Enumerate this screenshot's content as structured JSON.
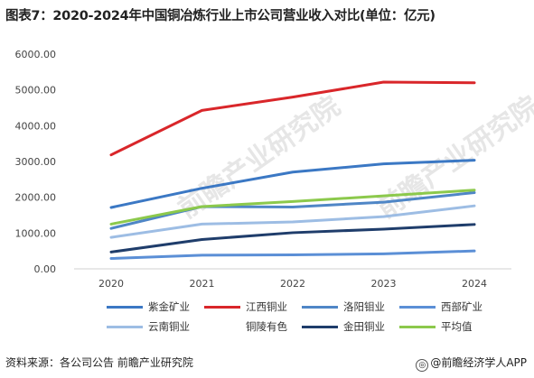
{
  "title": "图表7：2020-2024年中国铜冶炼行业上市公司营业收入对比(单位：亿元)",
  "source": "资料来源：各公司公告 前瞻产业研究院",
  "brand": "@前瞻经济学人APP",
  "watermark": "前瞻产业研究院",
  "chart_data": {
    "type": "line",
    "x": [
      "2020",
      "2021",
      "2022",
      "2023",
      "2024"
    ],
    "y_ticks": [
      "0.00",
      "1000.00",
      "2000.00",
      "3000.00",
      "4000.00",
      "5000.00",
      "6000.00"
    ],
    "ylim": [
      0,
      6000
    ],
    "grid": false,
    "legend_position": "bottom",
    "series": [
      {
        "name": "紫金矿业",
        "color": "#3b78c4",
        "values": [
          1715,
          2251,
          2703,
          2934,
          3036
        ]
      },
      {
        "name": "江西铜业",
        "color": "#d9262a",
        "values": [
          3185,
          4428,
          4799,
          5218,
          5201
        ]
      },
      {
        "name": "洛阳钼业",
        "color": "#4f86c6",
        "values": [
          1130,
          1739,
          1728,
          1863,
          2130
        ]
      },
      {
        "name": "西部矿业",
        "color": "#5b8fd6",
        "values": [
          290,
          380,
          390,
          420,
          500
        ]
      },
      {
        "name": "云南铜业",
        "color": "#9dbde4",
        "values": [
          880,
          1250,
          1310,
          1460,
          1760
        ]
      },
      {
        "name": "铜陵有色",
        "color": "#cccccc",
        "values": [
          null,
          null,
          null,
          null,
          null
        ]
      },
      {
        "name": "金田铜业",
        "color": "#1f3d6b",
        "values": [
          470,
          820,
          1010,
          1110,
          1240
        ]
      },
      {
        "name": "平均值",
        "color": "#8cc94c",
        "values": [
          1250,
          1740,
          1880,
          2040,
          2200
        ]
      }
    ]
  }
}
